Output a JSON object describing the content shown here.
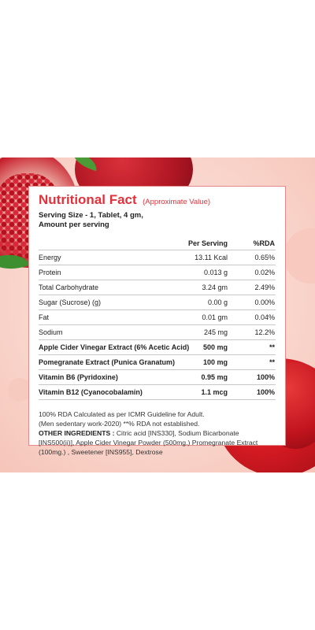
{
  "card": {
    "title": "Nutritional Fact",
    "subtitle": "(Approximate Value)",
    "serving_size": "Serving Size - 1, Tablet, 4 gm,",
    "amount_per": "Amount per serving"
  },
  "table": {
    "headers": [
      "",
      "Per Serving",
      "%RDA"
    ],
    "rows": [
      {
        "name": "Energy",
        "serving": "13.11 Kcal",
        "rda": "0.65%"
      },
      {
        "name": "Protein",
        "serving": "0.013 g",
        "rda": "0.02%"
      },
      {
        "name": "Total Carbohydrate",
        "serving": "3.24 gm",
        "rda": "2.49%"
      },
      {
        "name": "Sugar (Sucrose) (g)",
        "serving": "0.00 g",
        "rda": "0.00%"
      },
      {
        "name": "Fat",
        "serving": "0.01 gm",
        "rda": "0.04%"
      },
      {
        "name": "Sodium",
        "serving": "245 mg",
        "rda": "12.2%"
      },
      {
        "name": "Apple Cider Vinegar Extract (6% Acetic Acid)",
        "serving": "500 mg",
        "rda": "**"
      },
      {
        "name": "Pomegranate Extract (Punica Granatum)",
        "serving": "100 mg",
        "rda": "**"
      },
      {
        "name": "Vitamin B6 (Pyridoxine)",
        "serving": "0.95 mg",
        "rda": "100%"
      },
      {
        "name": "Vitamin B12 (Cyanocobalamin)",
        "serving": "1.1 mcg",
        "rda": "100%"
      }
    ]
  },
  "notes": {
    "line1": "100% RDA Calculated as per ICMR Guideline for Adult.",
    "line2": "(Men sedentary work-2020) **% RDA not established.",
    "ingredients_label": "OTHER INGREDIENTS :",
    "ingredients_text": " Citric acid [INS330], Sodium Bicarbonate [INS500(ii)], Apple Cider Vinegar Powder (500mg.) Promegranate Extract (100mg.) , Sweetener [INS955], Dextrose"
  },
  "colors": {
    "accent": "#e1323c",
    "border": "#e58a8a",
    "background": "#f9d6cd"
  }
}
